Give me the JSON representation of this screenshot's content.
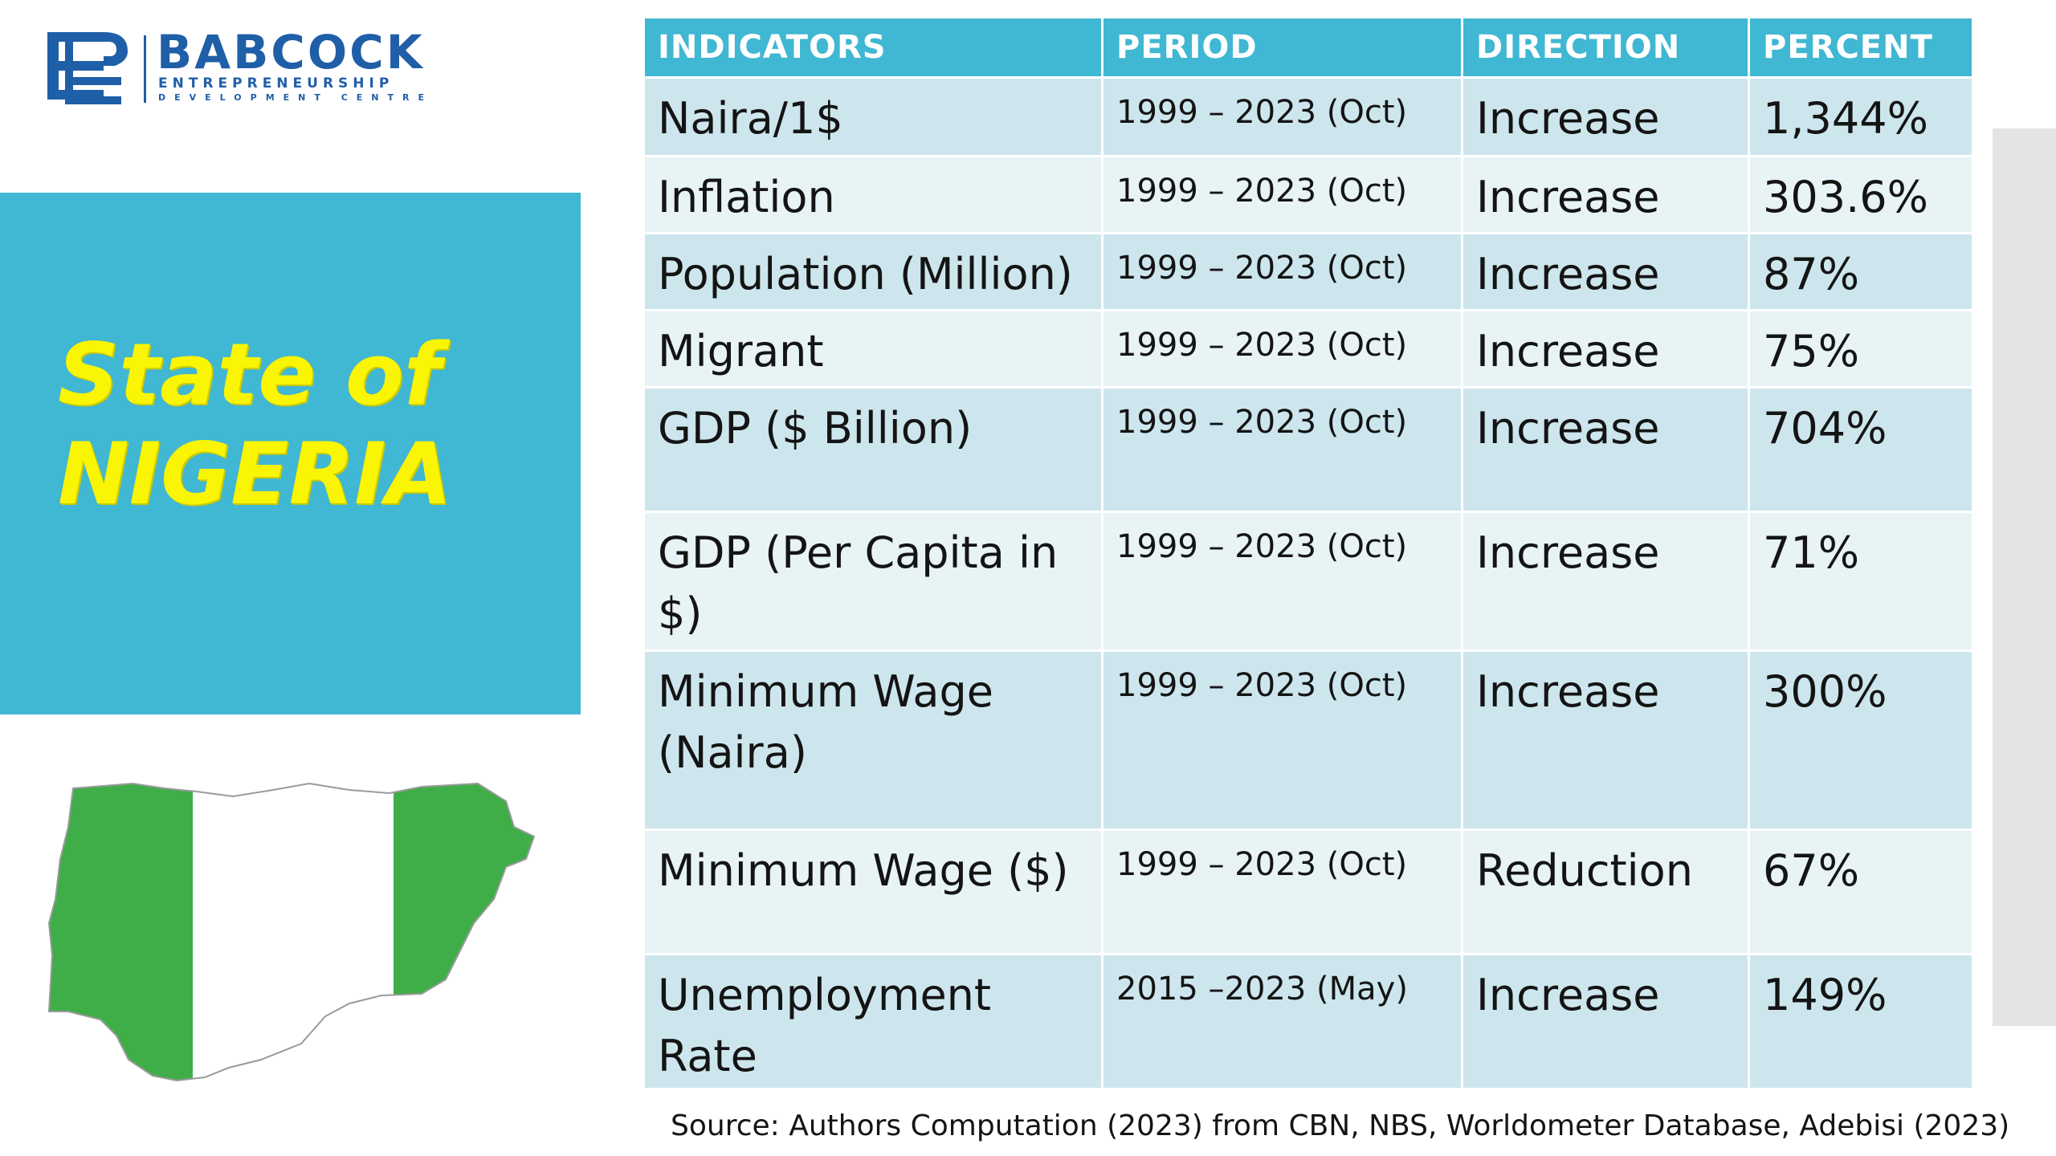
{
  "logo": {
    "name": "BABCOCK",
    "line1": "ENTREPRENEURSHIP",
    "line2": "DEVELOPMENT CENTRE"
  },
  "title": {
    "line1": "State of",
    "line2": "NIGERIA"
  },
  "table": {
    "headers": [
      "INDICATORS",
      "PERIOD",
      "DIRECTION",
      "PERCENT"
    ],
    "rows": [
      {
        "indicator": "Naira/1$",
        "period": "1999 – 2023 (Oct)",
        "direction": "Increase",
        "percent": "1,344%"
      },
      {
        "indicator": "Inflation",
        "period": "1999 – 2023 (Oct)",
        "direction": "Increase",
        "percent": "303.6%"
      },
      {
        "indicator": "Population (Million)",
        "period": "1999 – 2023 (Oct)",
        "direction": "Increase",
        "percent": "87%"
      },
      {
        "indicator": "Migrant",
        "period": "1999 – 2023 (Oct)",
        "direction": "Increase",
        "percent": "75%"
      },
      {
        "indicator": "GDP ($ Billion)",
        "period": "1999 – 2023 (Oct)",
        "direction": "Increase",
        "percent": "704%"
      },
      {
        "indicator": "GDP (Per Capita in $)",
        "period": "1999 – 2023 (Oct)",
        "direction": "Increase",
        "percent": "71%"
      },
      {
        "indicator": "Minimum Wage (Naira)",
        "period": "1999 – 2023 (Oct)",
        "direction": "Increase",
        "percent": "300%"
      },
      {
        "indicator": "Minimum Wage ($)",
        "period": "1999 – 2023 (Oct)",
        "direction": "Reduction",
        "percent": "67%"
      },
      {
        "indicator": "Unemployment Rate",
        "period": "2015 –2023 (May)",
        "direction": "Increase",
        "percent": "149%"
      }
    ]
  },
  "source": "Source: Authors Computation (2023) from CBN, NBS, Worldometer Database, Adebisi (2023)",
  "colors": {
    "accent": "#40b7d3",
    "title_text": "#f9f505",
    "logo_blue": "#1f5fa8",
    "flag_green": "#3fae49",
    "row_dark": "#cde6ed",
    "row_light": "#e8f3f6"
  },
  "icons": {
    "logo_mark": "babcock-be-monogram-icon",
    "map": "nigeria-flag-map-icon"
  }
}
